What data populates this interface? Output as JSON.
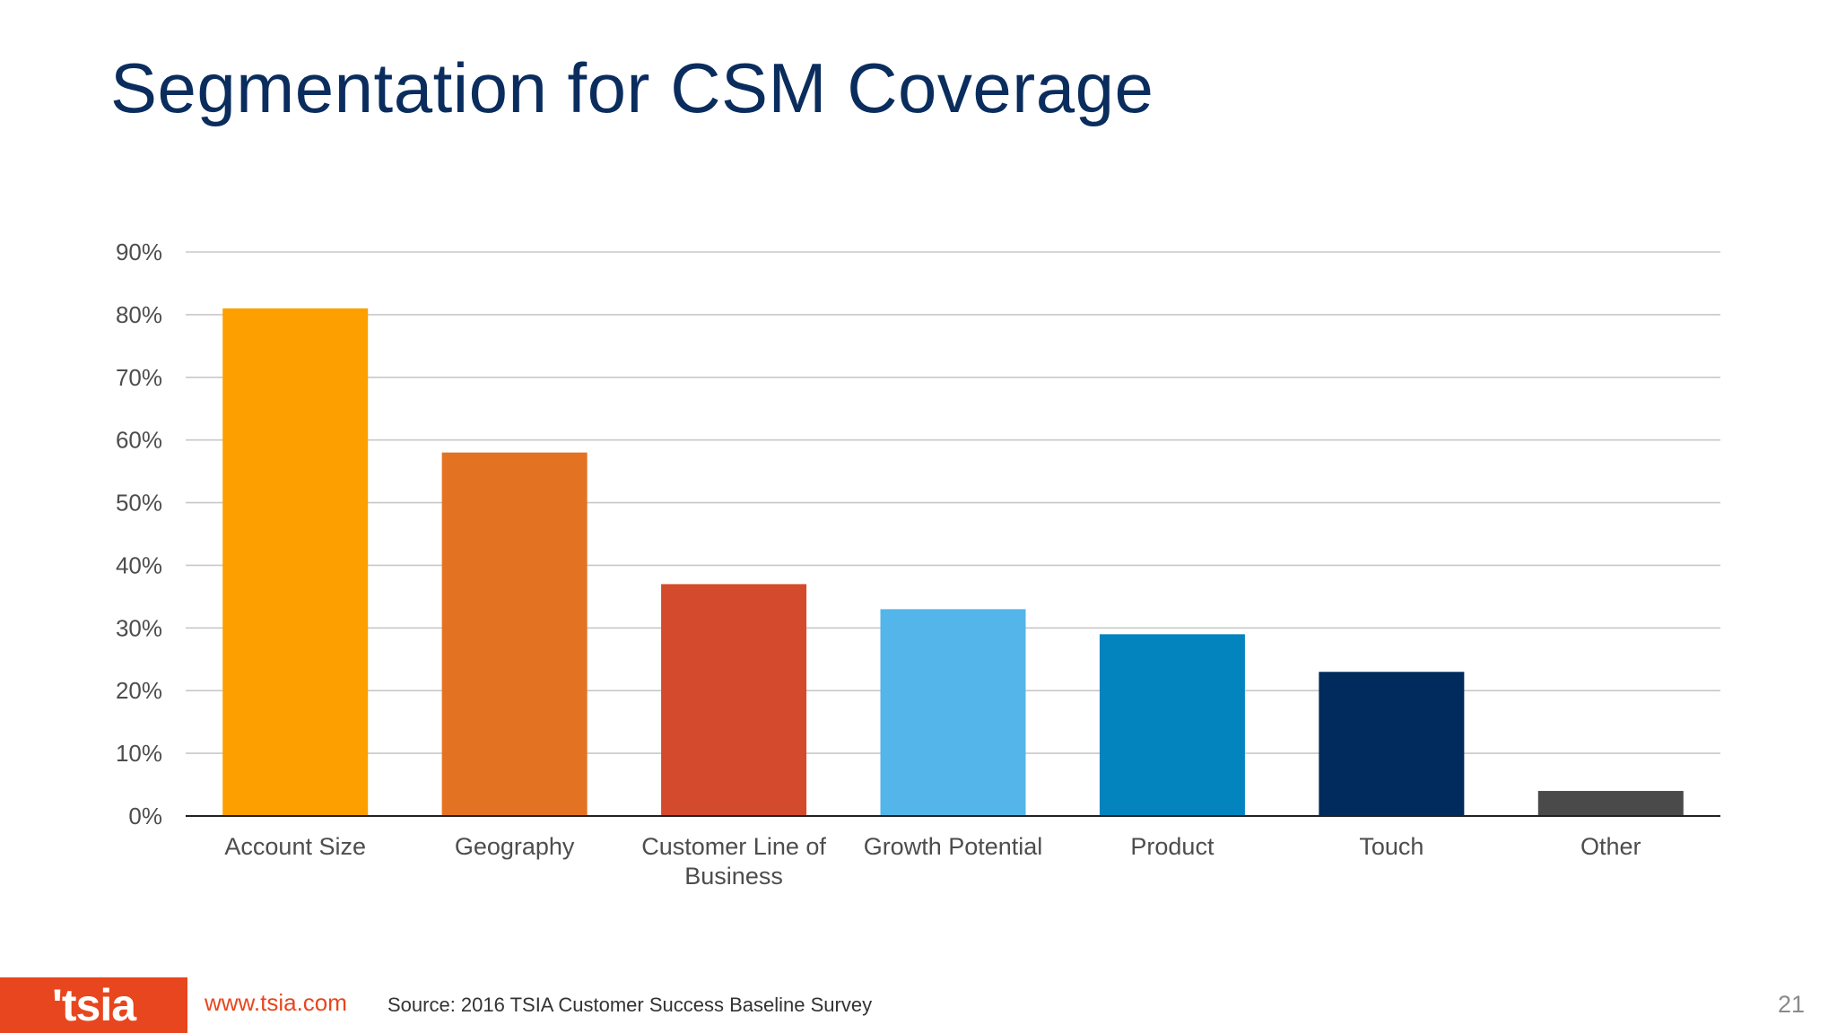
{
  "slide": {
    "title": "Segmentation for CSM Coverage",
    "page_number": "21"
  },
  "footer": {
    "logo_text": "'tsia",
    "url": "www.tsia.com",
    "source": "Source: 2016 TSIA Customer Success Baseline Survey"
  },
  "chart_data": {
    "type": "bar",
    "categories": [
      "Account Size",
      "Geography",
      "Customer Line of Business",
      "Growth Potential",
      "Product",
      "Touch",
      "Other"
    ],
    "category_lines": [
      [
        "Account Size"
      ],
      [
        "Geography"
      ],
      [
        "Customer Line of",
        "Business"
      ],
      [
        "Growth Potential"
      ],
      [
        "Product"
      ],
      [
        "Touch"
      ],
      [
        "Other"
      ]
    ],
    "values": [
      81,
      58,
      37,
      33,
      29,
      23,
      4
    ],
    "colors": [
      "#fe9f00",
      "#e37322",
      "#d34b2c",
      "#54b5ea",
      "#0384bf",
      "#002b5c",
      "#4a4a4a"
    ],
    "ylim": [
      0,
      90
    ],
    "yticks": [
      0,
      10,
      20,
      30,
      40,
      50,
      60,
      70,
      80,
      90
    ],
    "ytick_labels": [
      "0%",
      "10%",
      "20%",
      "30%",
      "40%",
      "50%",
      "60%",
      "70%",
      "80%",
      "90%"
    ],
    "grid": true,
    "title": "",
    "xlabel": "",
    "ylabel": ""
  }
}
